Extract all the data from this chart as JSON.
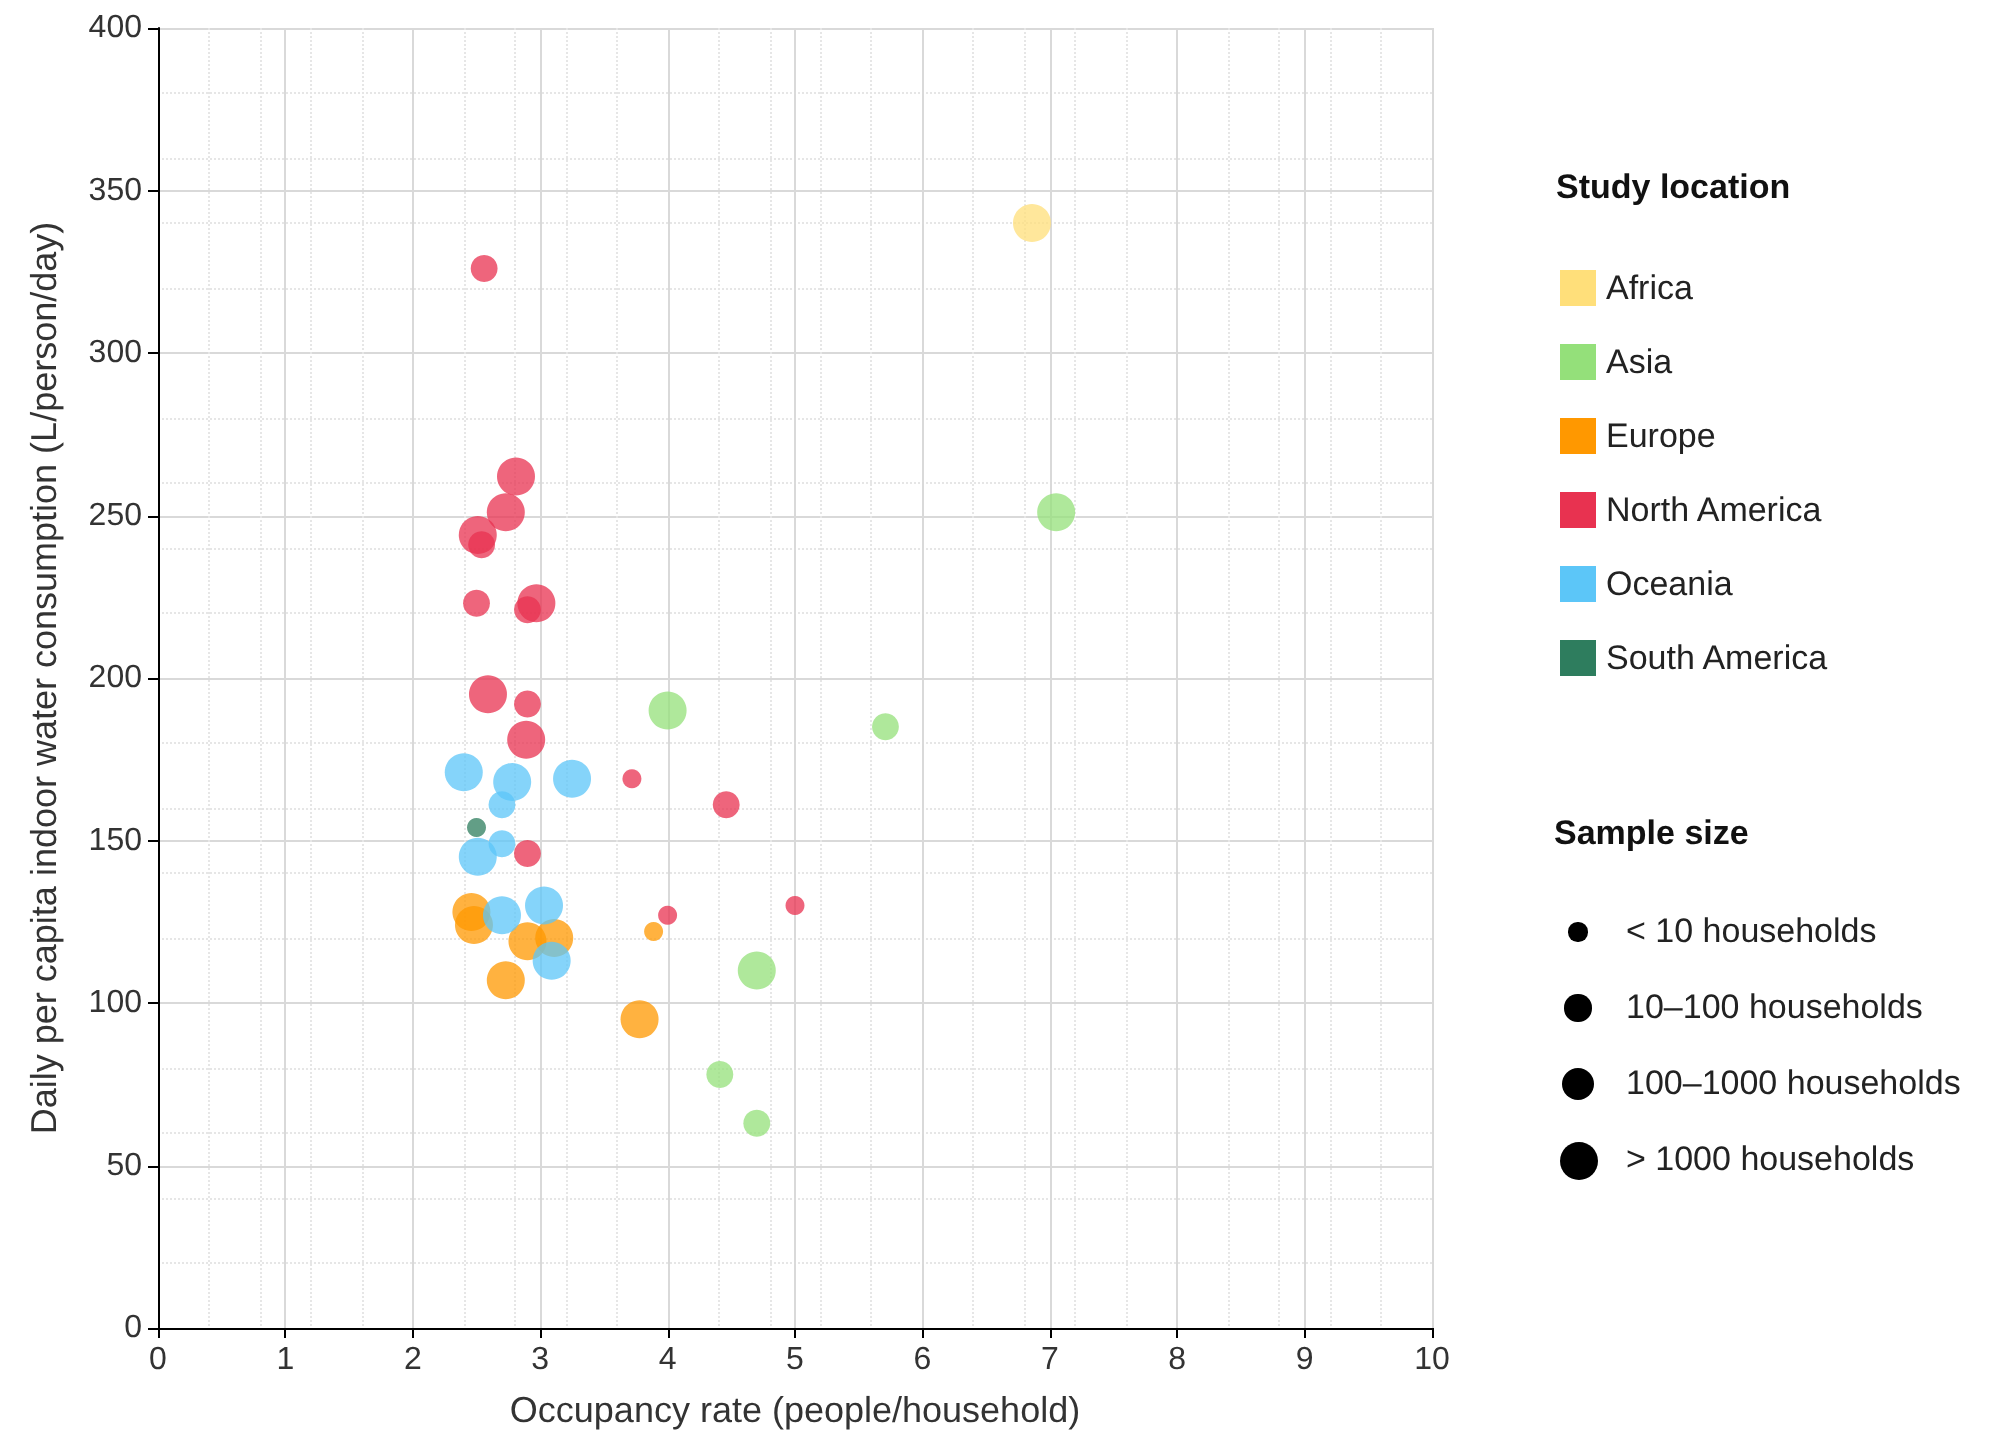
{
  "chart_data": {
    "type": "bubble",
    "xlabel": "Occupancy rate (people/household)",
    "ylabel": "Daily per capita indoor water consumption (L/person/day)",
    "legend_title": "Study location",
    "legend": "right",
    "grid": true,
    "marker": "circle",
    "xlim": [
      0,
      10
    ],
    "xticks": [
      0,
      1,
      2,
      3,
      4,
      5,
      6,
      7,
      8,
      9,
      10
    ],
    "ylim": [
      0,
      400
    ],
    "yticks": [
      0,
      50,
      100,
      150,
      200,
      250,
      300,
      350,
      400
    ],
    "size_legend": [
      {
        "value": 1,
        "label": "< 10 households"
      },
      {
        "value": 2,
        "label": "10–100 households"
      },
      {
        "value": 3,
        "label": "100–1000 households"
      },
      {
        "value": 4,
        "label": "> 1000 households"
      }
    ],
    "annotations": [
      "Sample size"
    ],
    "series": [
      {
        "name": "Africa",
        "color": "#ffdf7a",
        "x": [
          6.86
        ],
        "values": [
          340
        ],
        "sizes": [
          4
        ]
      },
      {
        "name": "Asia",
        "color": "#94e07a",
        "x": [
          7.05,
          4.0,
          5.71,
          4.7,
          4.41,
          4.7
        ],
        "values": [
          251,
          190,
          185,
          110,
          78,
          63
        ],
        "sizes": [
          4,
          4,
          2,
          4,
          2,
          2
        ]
      },
      {
        "name": "Europe",
        "color": "#ff9800",
        "x": [
          2.46,
          2.48,
          2.9,
          3.11,
          2.73,
          3.78,
          3.89
        ],
        "values": [
          128,
          124,
          119,
          120,
          107,
          95,
          122
        ],
        "sizes": [
          4,
          4,
          4,
          4,
          4,
          4,
          1
        ]
      },
      {
        "name": "North America",
        "color": "#e83250",
        "x": [
          2.56,
          2.81,
          2.73,
          2.51,
          2.54,
          2.5,
          2.97,
          2.9,
          2.59,
          2.9,
          2.89,
          3.72,
          4.46,
          2.9,
          4.0,
          5.0
        ],
        "values": [
          326,
          262,
          251,
          244,
          241,
          223,
          223,
          221,
          195,
          192,
          181,
          169,
          161,
          146,
          127,
          130
        ],
        "sizes": [
          2,
          4,
          4,
          4,
          2,
          2,
          4,
          2,
          4,
          2,
          4,
          1,
          2,
          2,
          1,
          1
        ]
      },
      {
        "name": "Oceania",
        "color": "#5cc6f8",
        "x": [
          2.4,
          2.78,
          3.25,
          2.7,
          2.7,
          2.51,
          2.7,
          3.03,
          3.09
        ],
        "values": [
          171,
          168,
          169,
          161,
          149,
          145,
          127,
          130,
          113
        ],
        "sizes": [
          4,
          4,
          4,
          2,
          2,
          4,
          4,
          4,
          4
        ]
      },
      {
        "name": "South America",
        "color": "#2e7d5e",
        "x": [
          2.5
        ],
        "values": [
          154
        ],
        "sizes": [
          1
        ]
      }
    ]
  }
}
